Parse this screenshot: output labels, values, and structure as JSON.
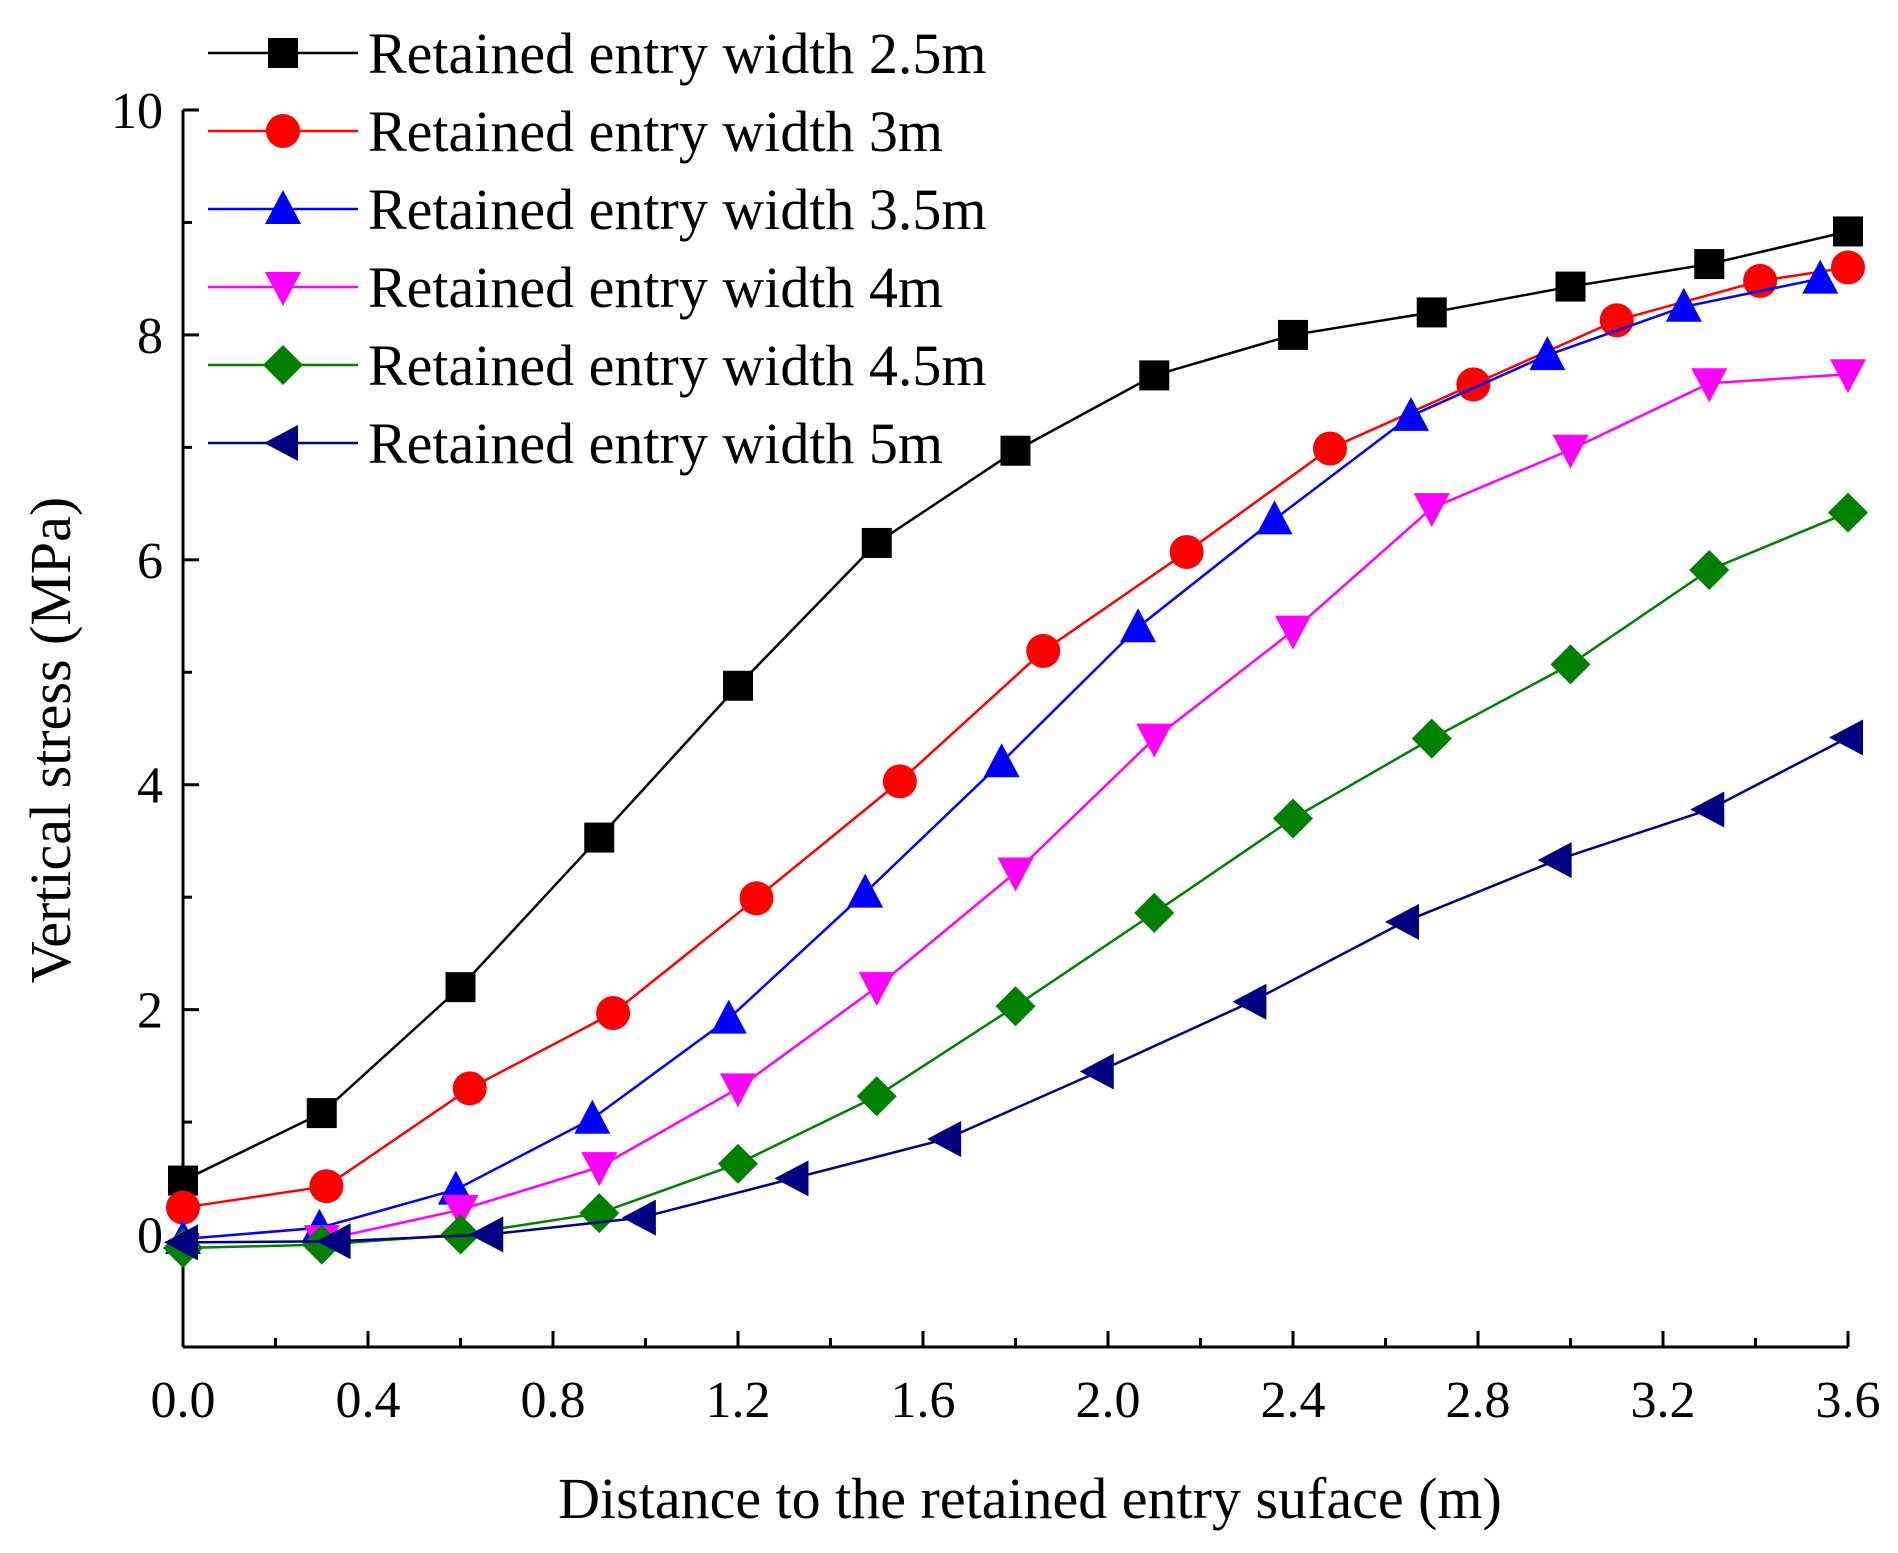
{
  "chart_data": {
    "type": "line",
    "title": "",
    "xlabel": "Distance to the retained entry suface (m)",
    "ylabel": "Vertical stress (MPa)",
    "xlim": [
      0.0,
      3.6
    ],
    "ylim": [
      -1,
      10
    ],
    "xticks": [
      0.0,
      0.4,
      0.8,
      1.2,
      1.6,
      2.0,
      2.4,
      2.8,
      3.2,
      3.6
    ],
    "xtick_labels": [
      "0.0",
      "0.4",
      "0.8",
      "1.2",
      "1.6",
      "2.0",
      "2.4",
      "2.8",
      "3.2",
      "3.6"
    ],
    "yticks": [
      0,
      2,
      4,
      6,
      8,
      10
    ],
    "ytick_labels": [
      "0",
      "2",
      "4",
      "6",
      "8",
      "10"
    ],
    "grid": false,
    "legend_position": "top-left",
    "series": [
      {
        "name": "Retained entry width 2.5m",
        "color": "#000000",
        "marker": "square",
        "x": [
          0.0,
          0.3,
          0.6,
          0.9,
          1.2,
          1.5,
          1.8,
          2.1,
          2.4,
          2.7,
          3.0,
          3.3,
          3.6
        ],
        "y": [
          0.48,
          1.08,
          2.2,
          3.53,
          4.88,
          6.15,
          6.97,
          7.64,
          8.0,
          8.2,
          8.43,
          8.63,
          8.92
        ]
      },
      {
        "name": "Retained entry width 3m",
        "color": "#ff0000",
        "marker": "circle",
        "x": [
          0.0,
          0.31,
          0.62,
          0.93,
          1.24,
          1.55,
          1.86,
          2.17,
          2.48,
          2.79,
          3.1,
          3.41,
          3.6
        ],
        "y": [
          0.24,
          0.43,
          1.3,
          1.97,
          2.99,
          4.03,
          5.19,
          6.07,
          6.99,
          7.56,
          8.13,
          8.48,
          8.6
        ]
      },
      {
        "name": "Retained entry width 3.5m",
        "color": "#0000ff",
        "marker": "triangle-up",
        "x": [
          0.0,
          0.295,
          0.59,
          0.885,
          1.18,
          1.475,
          1.77,
          2.065,
          2.36,
          2.655,
          2.95,
          3.245,
          3.54
        ],
        "y": [
          -0.04,
          0.06,
          0.4,
          1.03,
          1.92,
          3.04,
          4.2,
          5.4,
          6.36,
          7.28,
          7.82,
          8.25,
          8.5
        ]
      },
      {
        "name": "Retained entry width 4m",
        "color": "#ff00ff",
        "marker": "triangle-down",
        "x": [
          0.3,
          0.6,
          0.9,
          1.2,
          1.5,
          1.8,
          2.1,
          2.4,
          2.7,
          3.0,
          3.3,
          3.6
        ],
        "y": [
          -0.05,
          0.22,
          0.6,
          1.3,
          2.2,
          3.22,
          4.41,
          5.37,
          6.46,
          6.98,
          7.57,
          7.65
        ]
      },
      {
        "name": "Retained entry width 4.5m",
        "color": "#008000",
        "marker": "diamond",
        "x": [
          0.0,
          0.3,
          0.6,
          0.9,
          1.2,
          1.5,
          1.8,
          2.1,
          2.4,
          2.7,
          3.0,
          3.3,
          3.6
        ],
        "y": [
          -0.12,
          -0.09,
          0.0,
          0.19,
          0.63,
          1.23,
          2.03,
          2.86,
          3.7,
          4.41,
          5.07,
          5.91,
          6.42
        ]
      },
      {
        "name": "Retained entry width 5m",
        "color": "#000080",
        "marker": "triangle-left",
        "x": [
          0.0,
          0.33,
          0.66,
          0.99,
          1.32,
          1.65,
          1.98,
          2.31,
          2.64,
          2.97,
          3.3,
          3.6
        ],
        "y": [
          -0.07,
          -0.06,
          0.0,
          0.15,
          0.5,
          0.85,
          1.45,
          2.07,
          2.78,
          3.33,
          3.78,
          4.42
        ]
      }
    ]
  }
}
